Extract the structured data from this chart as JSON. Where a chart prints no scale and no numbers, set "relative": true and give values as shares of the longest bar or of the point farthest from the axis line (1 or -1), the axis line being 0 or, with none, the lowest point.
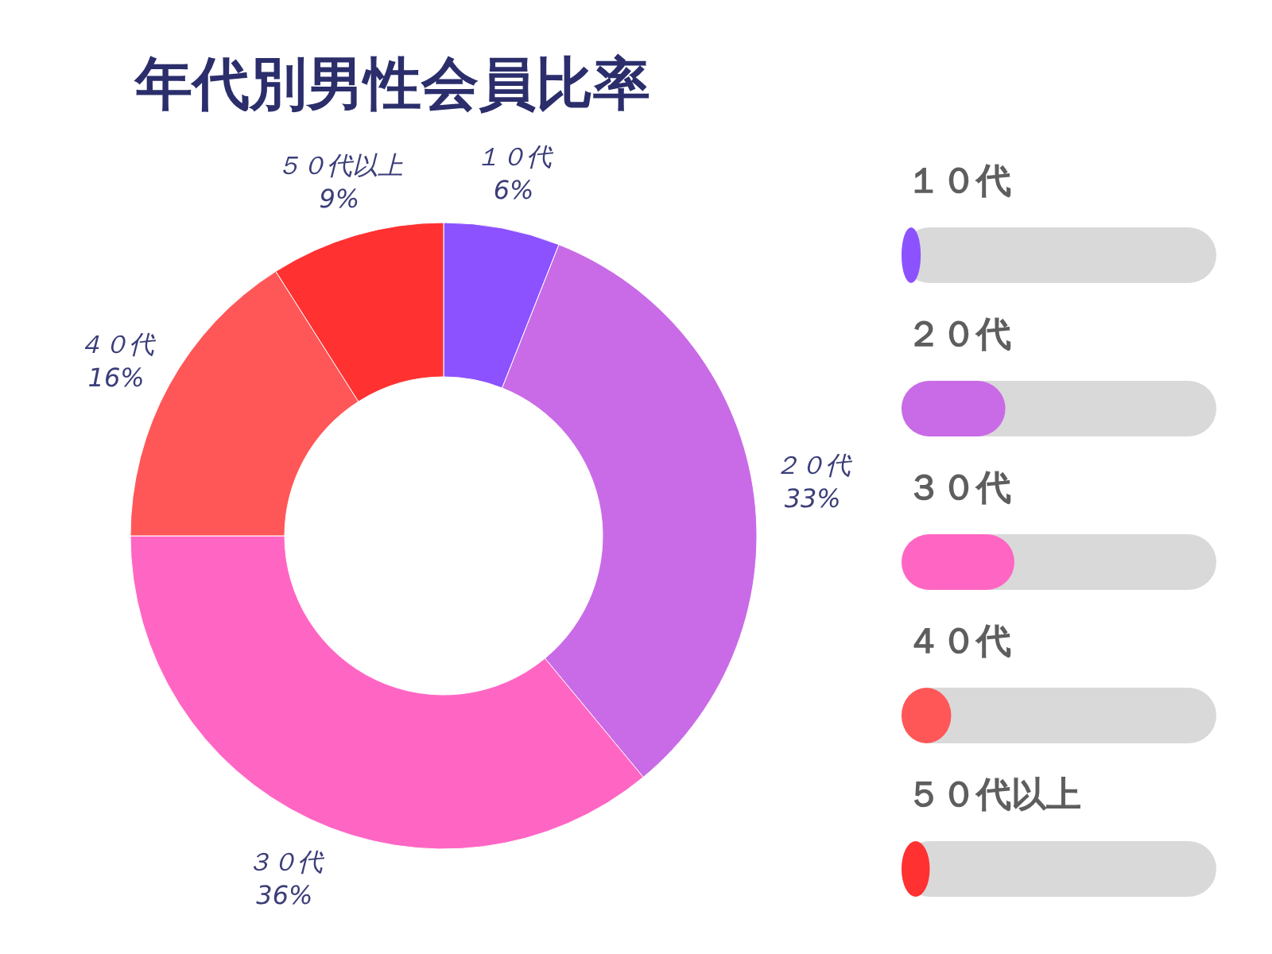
{
  "chart_data": [
    {
      "type": "donut",
      "title": "年代別男性会員比率",
      "categories": [
        "１０代",
        "２０代",
        "３０代",
        "４０代",
        "５０代以上"
      ],
      "values": [
        6,
        33,
        36,
        16,
        9
      ],
      "value_labels": [
        "6%",
        "33%",
        "36%",
        "16%",
        "9%"
      ],
      "colors": [
        "#8c52ff",
        "#c96be6",
        "#ff66c4",
        "#ff5757",
        "#ff3131"
      ]
    },
    {
      "type": "bar",
      "orientation": "horizontal",
      "categories": [
        "１０代",
        "２０代",
        "３０代",
        "４０代",
        "５０代以上"
      ],
      "values": [
        0.17,
        0.92,
        1,
        0.44,
        0.25
      ],
      "colors": [
        "#8c52ff",
        "#c96be6",
        "#ff66c4",
        "#ff5757",
        "#ff3131"
      ],
      "relative": true
    }
  ]
}
